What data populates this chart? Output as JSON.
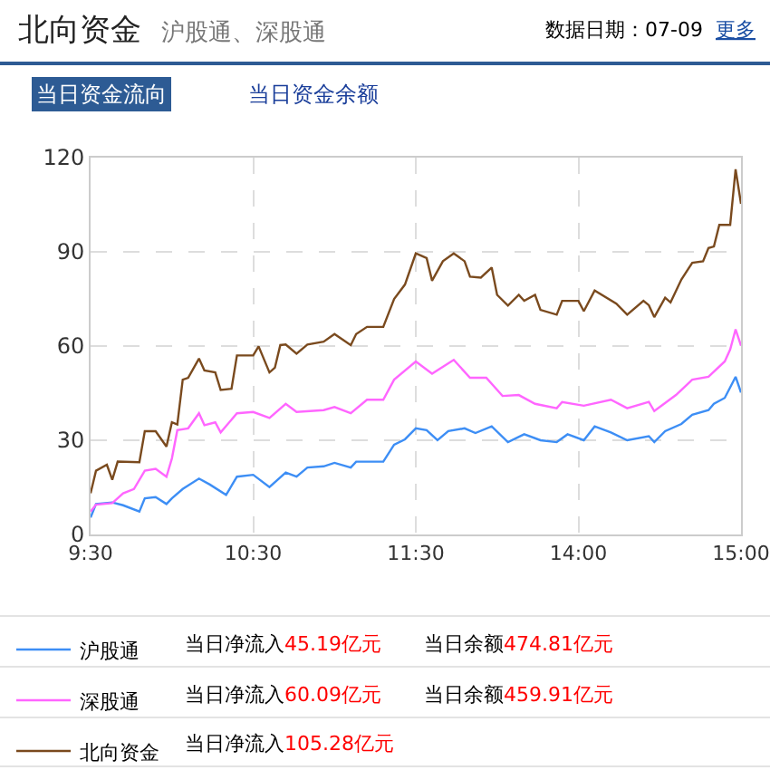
{
  "chart_data": {
    "type": "line",
    "title": "北向资金",
    "subtitle": "沪股通、深股通",
    "annotations": [
      "数据日期：07-09",
      "更多",
      "当日资金流向",
      "当日资金余额",
      "当日净流入45.19亿元",
      "当日余额474.81亿元",
      "当日净流入60.09亿元",
      "当日余额459.91亿元",
      "当日净流入105.28亿元"
    ],
    "categories": [
      "9:30",
      null,
      null,
      null,
      null,
      null,
      null,
      null,
      null,
      null,
      null,
      null,
      null,
      null,
      null,
      null,
      null,
      null,
      null,
      null,
      null,
      null,
      null,
      null,
      null,
      null,
      null,
      null,
      null,
      null,
      "10:30",
      null,
      null,
      null,
      null,
      null,
      null,
      null,
      null,
      null,
      null,
      null,
      null,
      null,
      null,
      null,
      null,
      null,
      null,
      null,
      null,
      null,
      null,
      null,
      null,
      null,
      null,
      null,
      null,
      null,
      "11:30",
      null,
      null,
      null,
      null,
      null,
      null,
      null,
      null,
      null,
      null,
      null,
      null,
      null,
      null,
      null,
      null,
      null,
      null,
      null,
      null,
      null,
      null,
      null,
      null,
      null,
      null,
      null,
      null,
      null,
      "14:00",
      null,
      null,
      null,
      null,
      null,
      null,
      null,
      null,
      null,
      null,
      null,
      null,
      null,
      null,
      null,
      null,
      null,
      null,
      null,
      null,
      null,
      null,
      null,
      null,
      null,
      null,
      null,
      null,
      null,
      "15:00"
    ],
    "ylim": [
      0,
      120
    ],
    "yticks": [
      0,
      30,
      60,
      90,
      120
    ],
    "grid": true,
    "legend": "bottom",
    "marker": "none",
    "line_style": "solid",
    "series": [
      {
        "name": "沪股通",
        "color": "#3d8ef5",
        "values": [
          5.4,
          9.7,
          null,
          null,
          10.2,
          null,
          9.3,
          null,
          null,
          7.3,
          11.5,
          null,
          11.9,
          null,
          9.7,
          11.5,
          null,
          14.5,
          null,
          null,
          17.8,
          null,
          15.9,
          null,
          null,
          12.6,
          null,
          18.4,
          null,
          null,
          19,
          null,
          null,
          15.1,
          null,
          null,
          19.7,
          null,
          18.4,
          null,
          21.3,
          null,
          null,
          21.7,
          null,
          22.8,
          null,
          null,
          21.3,
          23.2,
          null,
          null,
          null,
          null,
          23.2,
          null,
          28.6,
          null,
          30.3,
          null,
          33.8,
          null,
          33.2,
          null,
          30,
          null,
          32.9,
          null,
          null,
          33.8,
          null,
          32.3,
          null,
          null,
          34.4,
          null,
          null,
          29.4,
          null,
          null,
          31.9,
          null,
          null,
          30,
          null,
          null,
          29.4,
          null,
          31.9,
          null,
          null,
          30,
          null,
          34.4,
          null,
          null,
          32.5,
          null,
          null,
          30,
          null,
          null,
          null,
          31.3,
          29.4,
          null,
          32.9,
          null,
          null,
          35.2,
          null,
          38.1,
          null,
          null,
          39.6,
          41.6,
          null,
          43.5,
          null,
          50.2,
          45.2
        ]
      },
      {
        "name": "深股通",
        "color": "#ff66ff",
        "values": [
          7.3,
          9.5,
          null,
          null,
          10,
          null,
          13.1,
          null,
          14.5,
          null,
          20.3,
          null,
          20.9,
          null,
          18.4,
          24.2,
          33.2,
          null,
          33.8,
          null,
          38.6,
          34.8,
          null,
          35.7,
          32.5,
          null,
          null,
          38.6,
          null,
          null,
          39,
          null,
          null,
          37.1,
          null,
          null,
          41.6,
          null,
          39,
          null,
          null,
          null,
          null,
          39.6,
          null,
          40.6,
          null,
          null,
          38.6,
          null,
          null,
          42.9,
          null,
          null,
          42.9,
          null,
          49.3,
          null,
          null,
          null,
          55.1,
          null,
          null,
          51.2,
          null,
          null,
          null,
          55.6,
          null,
          null,
          49.9,
          null,
          null,
          49.9,
          null,
          null,
          44.1,
          null,
          null,
          44.4,
          null,
          null,
          41.6,
          null,
          null,
          null,
          40.2,
          42.2,
          null,
          null,
          null,
          41,
          null,
          null,
          null,
          null,
          42.9,
          null,
          null,
          40.2,
          null,
          null,
          null,
          42.2,
          39.3,
          null,
          null,
          null,
          44.4,
          null,
          null,
          49.3,
          null,
          null,
          50.2,
          null,
          null,
          55.1,
          58.9,
          65.3,
          60.1
        ]
      },
      {
        "name": "北向资金",
        "color": "#7a4a1e",
        "values": [
          13.1,
          20.3,
          null,
          22.2,
          17.4,
          23.2,
          null,
          null,
          null,
          23,
          32.9,
          null,
          32.9,
          null,
          28,
          35.7,
          35,
          49.3,
          49.9,
          null,
          56,
          52.2,
          null,
          51.6,
          46,
          null,
          46.4,
          57,
          null,
          null,
          57,
          59.9,
          null,
          51.6,
          53.1,
          60.3,
          60.5,
          null,
          57.6,
          null,
          60.5,
          null,
          null,
          61.4,
          null,
          63.8,
          null,
          null,
          60.3,
          63.8,
          null,
          66.1,
          null,
          null,
          66.1,
          null,
          75,
          null,
          79.6,
          null,
          89.5,
          null,
          88,
          80.8,
          null,
          87,
          null,
          89.5,
          null,
          87,
          82.1,
          null,
          81.8,
          null,
          85,
          76.3,
          null,
          72.9,
          null,
          76.3,
          74.4,
          null,
          76.3,
          71.5,
          null,
          null,
          70,
          74.4,
          null,
          null,
          74.4,
          71.1,
          null,
          77.7,
          null,
          null,
          null,
          73.5,
          null,
          70,
          null,
          null,
          74.4,
          73,
          69.2,
          null,
          75.4,
          73.9,
          null,
          81.2,
          null,
          86.5,
          null,
          87,
          91.2,
          91.7,
          98.6,
          null,
          98.6,
          116.3,
          105.3
        ]
      }
    ]
  }
}
